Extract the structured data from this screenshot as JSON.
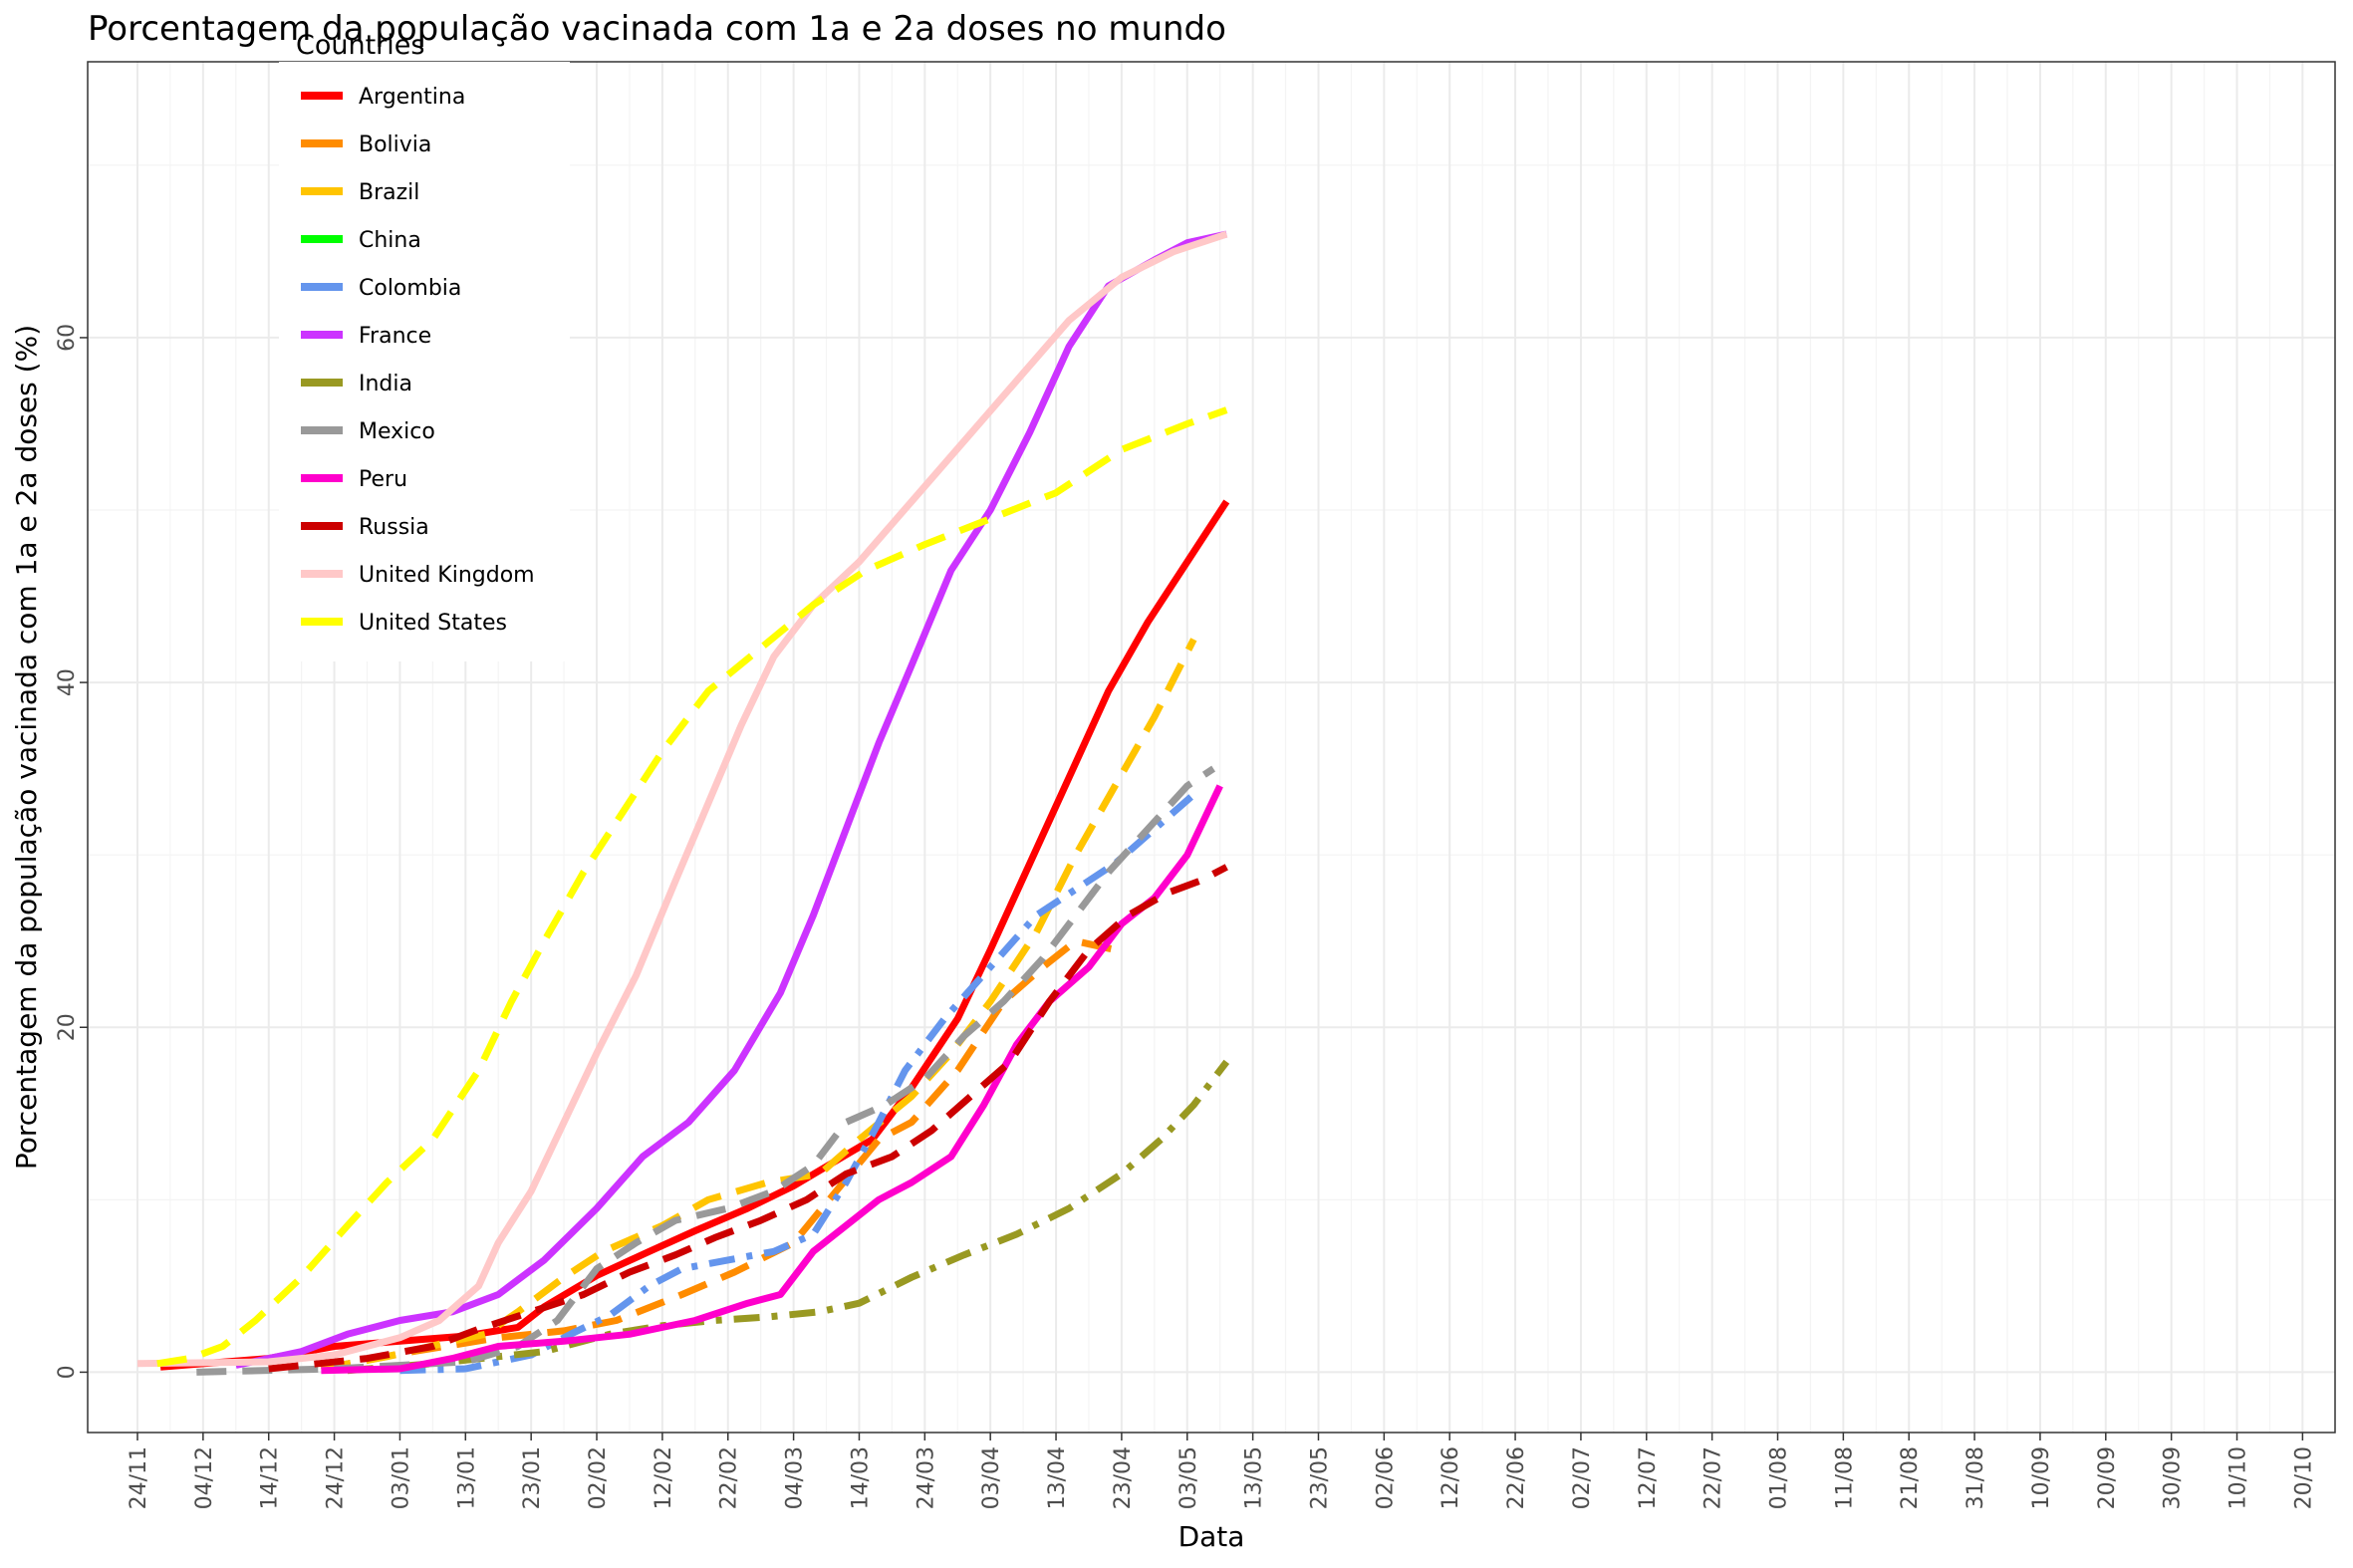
{
  "chart_data": {
    "type": "line",
    "title": "Porcentagem da população vacinada com 1a e 2a doses no mundo",
    "xlabel": "Data",
    "ylabel": "Porcentagem da população vacinada com 1a e 2a doses (%)",
    "x_ticks": [
      "24/11",
      "04/12",
      "14/12",
      "24/12",
      "03/01",
      "13/01",
      "23/01",
      "02/02",
      "12/02",
      "22/02",
      "04/03",
      "14/03",
      "24/03",
      "03/04",
      "13/04",
      "23/04",
      "03/05",
      "13/05",
      "23/05",
      "02/06",
      "12/06",
      "22/06",
      "02/07",
      "12/07",
      "22/07",
      "01/08",
      "11/08",
      "21/08",
      "31/08",
      "10/09",
      "20/09",
      "30/09",
      "10/10",
      "20/10"
    ],
    "y_ticks": [
      "0",
      "20",
      "40",
      "60"
    ],
    "ylim": [
      -3.5,
      76
    ],
    "grid": true,
    "legend": {
      "title": "Countries",
      "position": "top-left"
    },
    "series": [
      {
        "name": "Argentina",
        "color": "#ff0000",
        "dash": "solid",
        "points": [
          [
            3.5,
            0.3
          ],
          [
            20,
            0.8
          ],
          [
            30,
            1.5
          ],
          [
            40,
            1.8
          ],
          [
            50,
            2.1
          ],
          [
            58,
            2.6
          ],
          [
            62,
            3.8
          ],
          [
            70,
            5.6
          ],
          [
            78,
            7.0
          ],
          [
            85,
            8.2
          ],
          [
            93,
            9.5
          ],
          [
            100,
            10.8
          ],
          [
            108,
            12.6
          ],
          [
            112,
            13.5
          ],
          [
            118,
            16.5
          ],
          [
            125,
            20.5
          ],
          [
            130,
            24.5
          ],
          [
            136,
            29.5
          ],
          [
            142,
            34.5
          ],
          [
            148,
            39.5
          ],
          [
            154,
            43.5
          ],
          [
            160,
            47.0
          ],
          [
            166,
            50.5
          ]
        ]
      },
      {
        "name": "Bolivia",
        "color": "#ff8c00",
        "dash": "dash",
        "points": [
          [
            28,
            0.2
          ],
          [
            42,
            1.2
          ],
          [
            55,
            2.0
          ],
          [
            65,
            2.4
          ],
          [
            73,
            3.0
          ],
          [
            83,
            4.5
          ],
          [
            91,
            5.8
          ],
          [
            100,
            7.5
          ],
          [
            113,
            13.5
          ],
          [
            118,
            14.5
          ],
          [
            125,
            17.5
          ],
          [
            132,
            21.5
          ],
          [
            138,
            23.5
          ],
          [
            143,
            25.0
          ],
          [
            149,
            24.5
          ]
        ]
      },
      {
        "name": "Brazil",
        "color": "#ffc400",
        "dash": "dash",
        "points": [
          [
            28,
            0.2
          ],
          [
            38,
            0.9
          ],
          [
            48,
            1.8
          ],
          [
            53,
            2.2
          ],
          [
            58,
            3.5
          ],
          [
            65,
            5.5
          ],
          [
            71,
            7.0
          ],
          [
            80,
            8.5
          ],
          [
            87,
            10.0
          ],
          [
            96,
            11.0
          ],
          [
            104,
            11.5
          ],
          [
            110,
            13.5
          ],
          [
            118,
            16.0
          ],
          [
            124,
            18.5
          ],
          [
            130,
            21.5
          ],
          [
            137,
            25.5
          ],
          [
            143,
            30.0
          ],
          [
            149,
            34.0
          ],
          [
            155,
            38.0
          ],
          [
            161,
            42.5
          ]
        ]
      },
      {
        "name": "China",
        "color": "#00ff00",
        "dash": "solid",
        "points": []
      },
      {
        "name": "Colombia",
        "color": "#6495ed",
        "dash": "dashdot",
        "points": [
          [
            40,
            0.1
          ],
          [
            50,
            0.2
          ],
          [
            60,
            1.0
          ],
          [
            66,
            2.2
          ],
          [
            72,
            3.3
          ],
          [
            78,
            5.0
          ],
          [
            83,
            6.0
          ],
          [
            90,
            6.5
          ],
          [
            97,
            7.0
          ],
          [
            103,
            8.0
          ],
          [
            108,
            11.0
          ],
          [
            113,
            14.5
          ],
          [
            117,
            17.5
          ],
          [
            123,
            20.5
          ],
          [
            130,
            23.5
          ],
          [
            137,
            26.5
          ],
          [
            143,
            28.0
          ],
          [
            149,
            29.5
          ],
          [
            155,
            31.5
          ],
          [
            161,
            33.5
          ]
        ]
      },
      {
        "name": "France",
        "color": "#cc33ff",
        "dash": "solid",
        "points": [
          [
            15,
            0.4
          ],
          [
            25,
            1.2
          ],
          [
            32,
            2.2
          ],
          [
            40,
            3.0
          ],
          [
            48,
            3.5
          ],
          [
            55,
            4.5
          ],
          [
            62,
            6.5
          ],
          [
            70,
            9.5
          ],
          [
            77,
            12.5
          ],
          [
            84,
            14.5
          ],
          [
            91,
            17.5
          ],
          [
            98,
            22.0
          ],
          [
            103,
            26.5
          ],
          [
            108,
            31.5
          ],
          [
            113,
            36.5
          ],
          [
            118,
            41.0
          ],
          [
            124,
            46.5
          ],
          [
            130,
            50.0
          ],
          [
            136,
            54.5
          ],
          [
            142,
            59.5
          ],
          [
            148,
            63.0
          ],
          [
            155,
            64.5
          ],
          [
            160,
            65.5
          ],
          [
            166,
            66.0
          ]
        ]
      },
      {
        "name": "India",
        "color": "#999922",
        "dash": "dashdot",
        "points": [
          [
            32,
            0.1
          ],
          [
            45,
            0.5
          ],
          [
            55,
            0.9
          ],
          [
            62,
            1.2
          ],
          [
            72,
            2.2
          ],
          [
            80,
            2.7
          ],
          [
            88,
            3.0
          ],
          [
            96,
            3.2
          ],
          [
            104,
            3.5
          ],
          [
            110,
            4.0
          ],
          [
            118,
            5.5
          ],
          [
            126,
            6.8
          ],
          [
            134,
            8.0
          ],
          [
            142,
            9.5
          ],
          [
            150,
            11.5
          ],
          [
            156,
            13.5
          ],
          [
            161,
            15.5
          ],
          [
            166,
            18.0
          ]
        ]
      },
      {
        "name": "Mexico",
        "color": "#999999",
        "dash": "dash",
        "points": [
          [
            9,
            0.0
          ],
          [
            30,
            0.2
          ],
          [
            50,
            0.6
          ],
          [
            58,
            1.5
          ],
          [
            64,
            3.0
          ],
          [
            70,
            6.0
          ],
          [
            76,
            7.5
          ],
          [
            82,
            8.8
          ],
          [
            90,
            9.5
          ],
          [
            97,
            10.5
          ],
          [
            103,
            12.0
          ],
          [
            108,
            14.5
          ],
          [
            114,
            15.5
          ],
          [
            120,
            17.0
          ],
          [
            126,
            19.5
          ],
          [
            132,
            21.5
          ],
          [
            138,
            24.0
          ],
          [
            143,
            26.5
          ],
          [
            148,
            29.0
          ],
          [
            154,
            31.5
          ],
          [
            160,
            34.0
          ],
          [
            164,
            35.0
          ]
        ]
      },
      {
        "name": "Peru",
        "color": "#ff00cc",
        "dash": "solid",
        "points": [
          [
            28,
            0.1
          ],
          [
            40,
            0.2
          ],
          [
            48,
            0.8
          ],
          [
            55,
            1.5
          ],
          [
            65,
            1.8
          ],
          [
            75,
            2.2
          ],
          [
            85,
            3.0
          ],
          [
            93,
            4.0
          ],
          [
            98,
            4.5
          ],
          [
            103,
            7.0
          ],
          [
            108,
            8.5
          ],
          [
            113,
            10.0
          ],
          [
            118,
            11.0
          ],
          [
            124,
            12.5
          ],
          [
            129,
            15.5
          ],
          [
            134,
            19.0
          ],
          [
            139,
            21.5
          ],
          [
            145,
            23.5
          ],
          [
            150,
            26.0
          ],
          [
            155,
            27.5
          ],
          [
            160,
            30.0
          ],
          [
            165,
            34.0
          ]
        ]
      },
      {
        "name": "Russia",
        "color": "#cc0000",
        "dash": "dash",
        "points": [
          [
            20,
            0.2
          ],
          [
            35,
            0.8
          ],
          [
            45,
            1.5
          ],
          [
            52,
            2.5
          ],
          [
            60,
            3.5
          ],
          [
            68,
            4.5
          ],
          [
            75,
            5.8
          ],
          [
            82,
            6.8
          ],
          [
            88,
            7.8
          ],
          [
            95,
            8.8
          ],
          [
            102,
            10.0
          ],
          [
            108,
            11.5
          ],
          [
            115,
            12.5
          ],
          [
            121,
            14.0
          ],
          [
            127,
            16.0
          ],
          [
            133,
            18.0
          ],
          [
            139,
            21.5
          ],
          [
            145,
            24.5
          ],
          [
            151,
            26.5
          ],
          [
            157,
            27.8
          ],
          [
            162,
            28.5
          ],
          [
            166,
            29.3
          ]
        ]
      },
      {
        "name": "United Kingdom",
        "color": "#ffc8c8",
        "dash": "solid",
        "points": [
          [
            0,
            0.5
          ],
          [
            20,
            0.6
          ],
          [
            30,
            1.0
          ],
          [
            40,
            2.0
          ],
          [
            46,
            3.0
          ],
          [
            52,
            5.0
          ],
          [
            55,
            7.5
          ],
          [
            60,
            10.5
          ],
          [
            65,
            14.5
          ],
          [
            70,
            18.5
          ],
          [
            76,
            23.0
          ],
          [
            82,
            28.5
          ],
          [
            87,
            33.0
          ],
          [
            92,
            37.5
          ],
          [
            97,
            41.5
          ],
          [
            103,
            44.5
          ],
          [
            110,
            47.0
          ],
          [
            118,
            50.5
          ],
          [
            126,
            54.0
          ],
          [
            134,
            57.5
          ],
          [
            142,
            61.0
          ],
          [
            150,
            63.5
          ],
          [
            158,
            65.0
          ],
          [
            166,
            66.0
          ]
        ]
      },
      {
        "name": "United States",
        "color": "#ffff00",
        "dash": "dash",
        "points": [
          [
            3,
            0.5
          ],
          [
            8,
            0.8
          ],
          [
            13,
            1.5
          ],
          [
            18,
            3.0
          ],
          [
            25,
            5.5
          ],
          [
            32,
            8.5
          ],
          [
            38,
            11.0
          ],
          [
            45,
            13.5
          ],
          [
            52,
            17.5
          ],
          [
            57,
            21.5
          ],
          [
            62,
            25.0
          ],
          [
            68,
            29.0
          ],
          [
            74,
            32.5
          ],
          [
            80,
            36.0
          ],
          [
            87,
            39.5
          ],
          [
            95,
            42.0
          ],
          [
            103,
            44.5
          ],
          [
            111,
            46.5
          ],
          [
            120,
            48.0
          ],
          [
            130,
            49.5
          ],
          [
            140,
            51.0
          ],
          [
            150,
            53.5
          ],
          [
            160,
            55.0
          ],
          [
            166,
            55.8
          ]
        ]
      }
    ]
  }
}
